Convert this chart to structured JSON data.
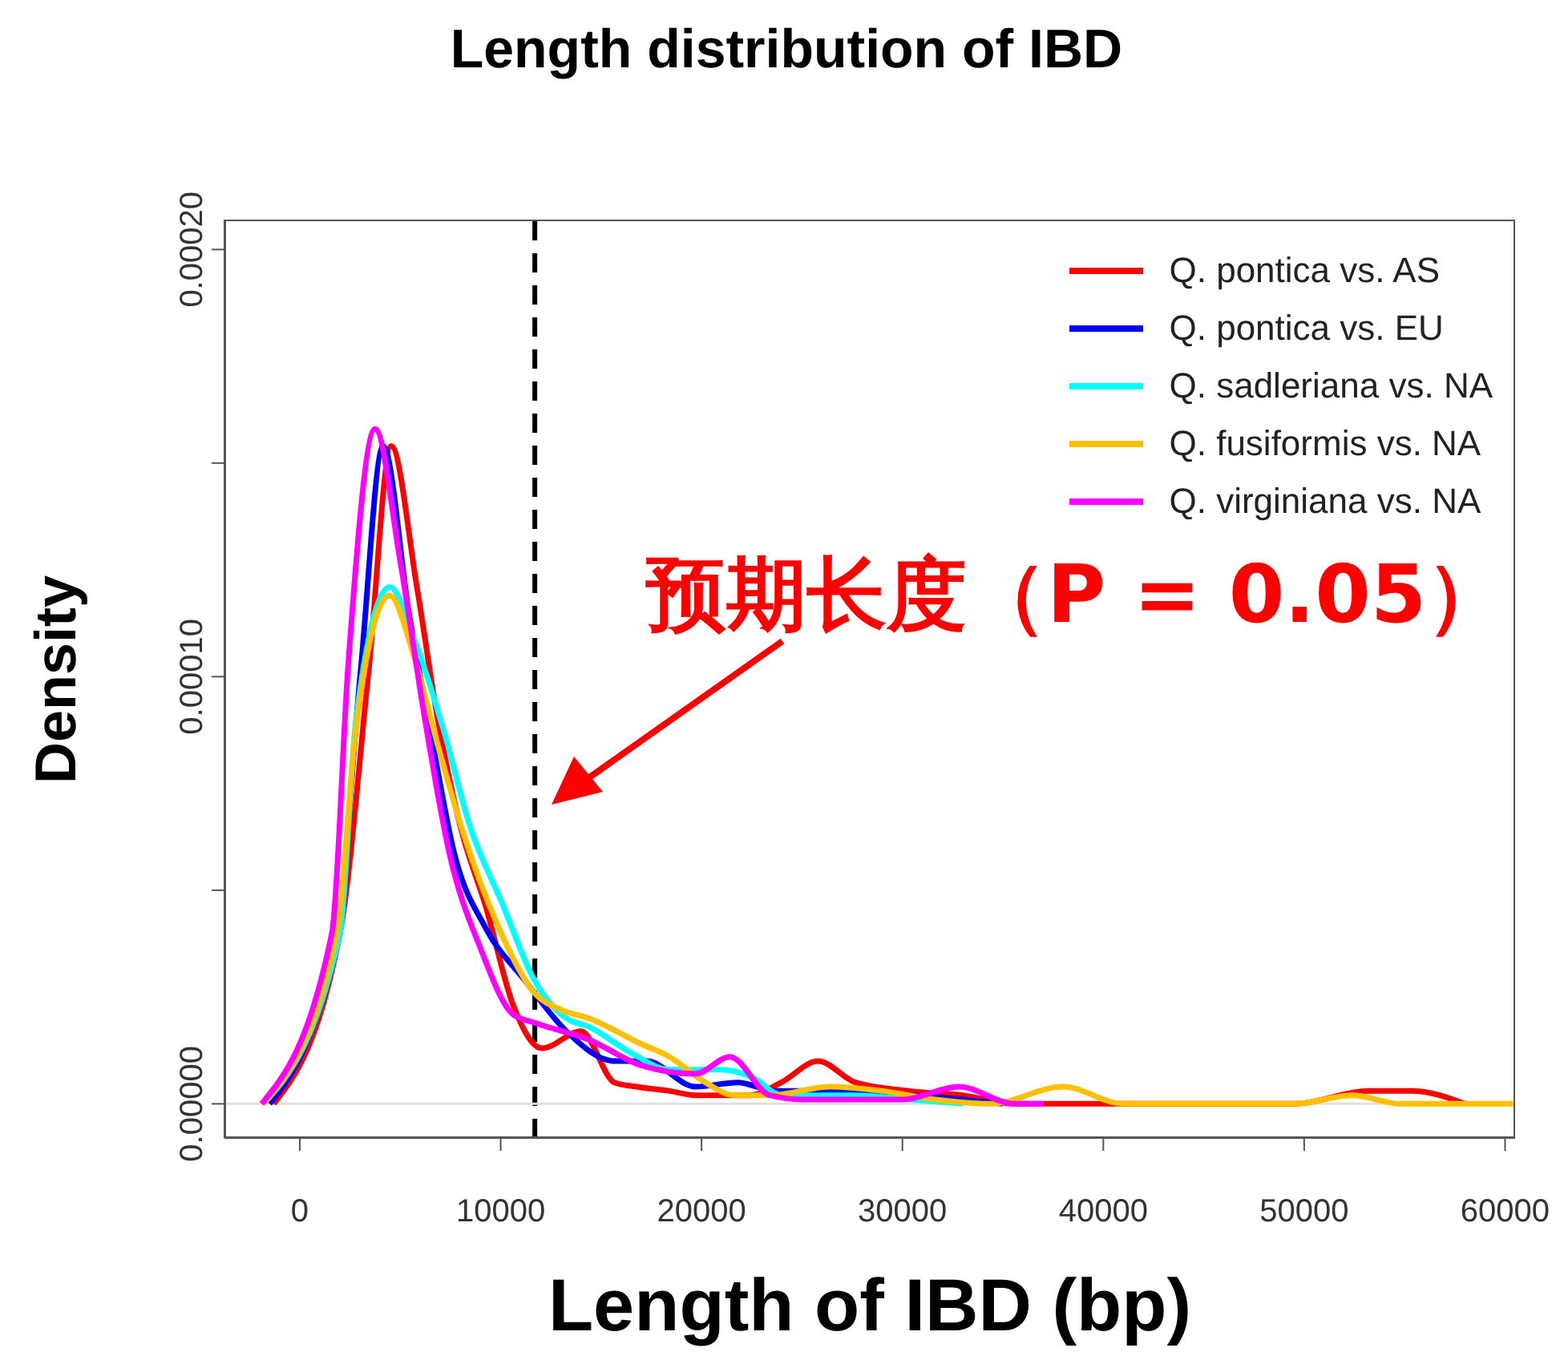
{
  "chart_data": {
    "type": "line",
    "title": "Length distribution of IBD",
    "xlabel": "Length of IBD (bp)",
    "ylabel": "Density",
    "annotations": [
      "预期长度（P = 0.05）"
    ],
    "xlim": [
      -3750,
      60500
    ],
    "ylim": [
      -8e-06,
      0.000207
    ],
    "xticks": [
      0,
      10000,
      20000,
      30000,
      40000,
      50000,
      60000
    ],
    "yticks": [
      {
        "value": 0,
        "label": "0.00000"
      },
      {
        "value": 5e-05,
        "label": null
      },
      {
        "value": 0.0001,
        "label": "0.00010"
      },
      {
        "value": 0.00015,
        "label": null
      },
      {
        "value": 0.0002,
        "label": "0.00020"
      }
    ],
    "legend": "top right",
    "marker": "none",
    "line_style": "solid",
    "ref_lines": [
      {
        "axis": "x",
        "value": 11700,
        "color": "#000000",
        "line_style": "dashed"
      },
      {
        "axis": "y",
        "value": 0,
        "color": "#e0e0e0",
        "line_style": "solid"
      }
    ],
    "series": [
      {
        "name": "Q. pontica vs. AS",
        "color": "#ff0000",
        "x": [
          -1300,
          2000,
          3440,
          4550,
          5830,
          6870,
          7990,
          9270,
          10630,
          12060,
          14000,
          15660,
          16770,
          18400,
          19700,
          22370,
          23970,
          25800,
          27650,
          30360,
          33000,
          35600,
          49500,
          53200,
          55400,
          58000
        ],
        "values": [
          0,
          4e-05,
          0.000102,
          0.000154,
          0.000121,
          9e-05,
          6.5e-05,
          4.6e-05,
          2.3e-05,
          1.3e-05,
          1.7e-05,
          5e-06,
          4e-06,
          3e-06,
          2e-06,
          2e-06,
          5e-06,
          1e-05,
          5e-06,
          3e-06,
          2e-06,
          0,
          0,
          3e-06,
          3e-06,
          0
        ]
      },
      {
        "name": "Q. pontica vs. EU",
        "color": "#0000ff",
        "x": [
          -1500,
          1840,
          3040,
          4150,
          5430,
          6630,
          7670,
          9270,
          11190,
          13270,
          15660,
          17260,
          19700,
          21800,
          23650,
          27650,
          30360,
          33000,
          35000
        ],
        "values": [
          0,
          4e-05,
          0.000102,
          0.000154,
          0.000115,
          8.4e-05,
          5.9e-05,
          4.1e-05,
          2.9e-05,
          1.7e-05,
          1e-05,
          1e-05,
          4e-06,
          5e-06,
          3e-06,
          3e-06,
          2e-06,
          1e-06,
          0
        ]
      },
      {
        "name": "Q. sadleriana vs. NA",
        "color": "#00ffff",
        "x": [
          -1800,
          2000,
          2800,
          4470,
          5830,
          7190,
          8470,
          10070,
          11670,
          13270,
          14400,
          16460,
          18400,
          21000,
          22600,
          23970,
          27650,
          30360,
          33000
        ],
        "values": [
          0,
          4e-05,
          9e-05,
          0.000121,
          0.000107,
          8.7e-05,
          6.5e-05,
          4.7e-05,
          2.9e-05,
          2e-05,
          1.8e-05,
          1.2e-05,
          8e-06,
          8e-06,
          6e-06,
          2e-06,
          2e-06,
          1e-06,
          0
        ]
      },
      {
        "name": "Q. fusiformis vs. NA",
        "color": "#ffc000",
        "x": [
          -1800,
          1840,
          2800,
          4470,
          5670,
          6870,
          8230,
          9830,
          11670,
          13020,
          14400,
          17000,
          18400,
          20200,
          21600,
          23400,
          26400,
          29000,
          31650,
          34350,
          38000,
          41000,
          49500,
          52400,
          54800,
          60400
        ],
        "values": [
          0,
          4e-05,
          8.8e-05,
          0.000119,
          0.000105,
          8.4e-05,
          6.2e-05,
          4.2e-05,
          2.6e-05,
          2.2e-05,
          2e-05,
          1.4e-05,
          1.1e-05,
          5e-06,
          2e-06,
          2e-06,
          4e-06,
          3e-06,
          1e-06,
          0,
          4e-06,
          0,
          0,
          2e-06,
          0,
          0
        ]
      },
      {
        "name": "Q. virginiana vs. NA",
        "color": "#ff00ff",
        "x": [
          -1900,
          1600,
          2400,
          3750,
          5000,
          6230,
          7430,
          9030,
          10600,
          11670,
          14400,
          17000,
          19700,
          21400,
          23400,
          25000,
          30000,
          32800,
          35600,
          37000
        ],
        "values": [
          0,
          4e-05,
          0.000102,
          0.000158,
          0.000127,
          9e-05,
          5.9e-05,
          3.6e-05,
          2.1e-05,
          1.9e-05,
          1.5e-05,
          9e-06,
          7e-06,
          1.1e-05,
          2e-06,
          1e-06,
          1e-06,
          4e-06,
          0,
          0
        ]
      }
    ]
  }
}
